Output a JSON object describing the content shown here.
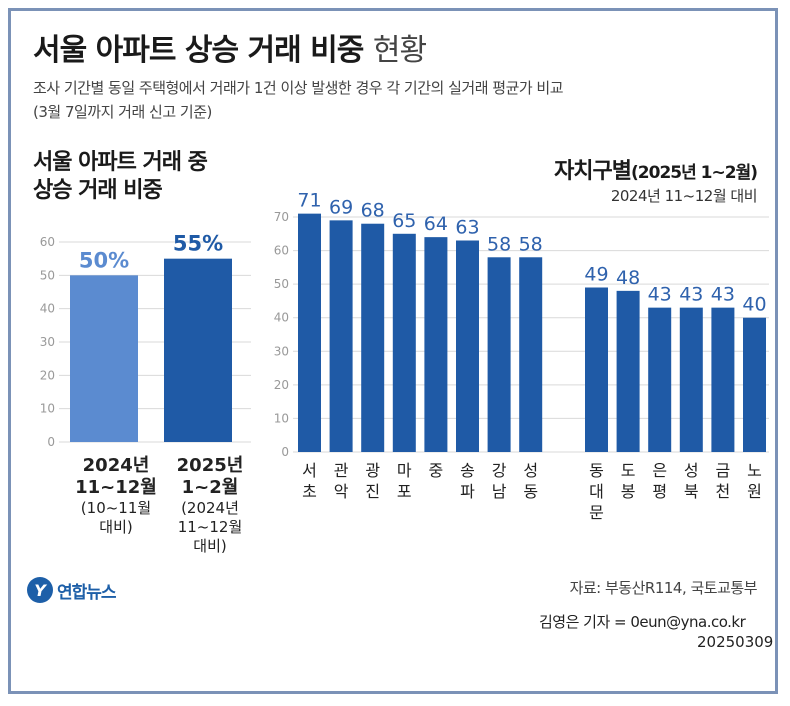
{
  "header": {
    "title_bold": "서울 아파트 상승 거래 비중",
    "title_light": "현황",
    "subtitle_line1": "조사 기간별 동일 주택형에서 거래가 1건 이상 발생한 경우 각 기간의 실거래 평균가 비교",
    "subtitle_line2": "(3월 7일까지 거래 신고 기준)"
  },
  "left_panel": {
    "heading_line1": "서울 아파트 거래 중",
    "heading_line2": "상승 거래 비중",
    "captions": [
      {
        "bold1": "2024년",
        "bold2": "11~12월",
        "note1": "(10~11월",
        "note2": "대비)",
        "note3": ""
      },
      {
        "bold1": "2025년",
        "bold2": "1~2월",
        "note1": "(2024년",
        "note2": "11~12월",
        "note3": "대비)"
      }
    ]
  },
  "right_panel": {
    "heading": "자치구별",
    "heading_period": "(2025년 1~2월)",
    "subheading": "2024년 11~12월 대비"
  },
  "chart_data": [
    {
      "type": "bar",
      "title": "서울 아파트 거래 중 상승 거래 비중",
      "categories": [
        "2024년 11~12월",
        "2025년 1~2월"
      ],
      "values": [
        50,
        55
      ],
      "value_labels": [
        "50%",
        "55%"
      ],
      "ylim": [
        0,
        60
      ],
      "yticks": [
        0,
        10,
        20,
        30,
        40,
        50,
        60
      ],
      "bar_colors": [
        "#5b8bd0",
        "#1f5aa6"
      ],
      "grid": true
    },
    {
      "type": "bar",
      "title": "자치구별 (2025년 1~2월)",
      "categories": [
        "서초",
        "관악",
        "광진",
        "마포",
        "중",
        "송파",
        "강남",
        "성동",
        "동대문",
        "도봉",
        "은평",
        "성북",
        "금천",
        "노원"
      ],
      "values": [
        71,
        69,
        68,
        65,
        64,
        63,
        58,
        58,
        49,
        48,
        43,
        43,
        43,
        40
      ],
      "ylim": [
        0,
        70
      ],
      "yticks": [
        0,
        10,
        20,
        30,
        40,
        50,
        60,
        70
      ],
      "bar_color": "#1f5aa6",
      "grid": true
    }
  ],
  "colors": {
    "accent": "#1f5aa6",
    "accent_light": "#5b8bd0",
    "value_label": "#2f62ad",
    "frame": "#7b92b7",
    "grid": "#d9d9d9"
  },
  "footer": {
    "logo_mark": "Y",
    "logo_text": "연합뉴스",
    "source": "자료: 부동산R114, 국토교통부",
    "credit": "김영은 기자 = 0eun@yna.co.kr",
    "date": "20250309"
  }
}
